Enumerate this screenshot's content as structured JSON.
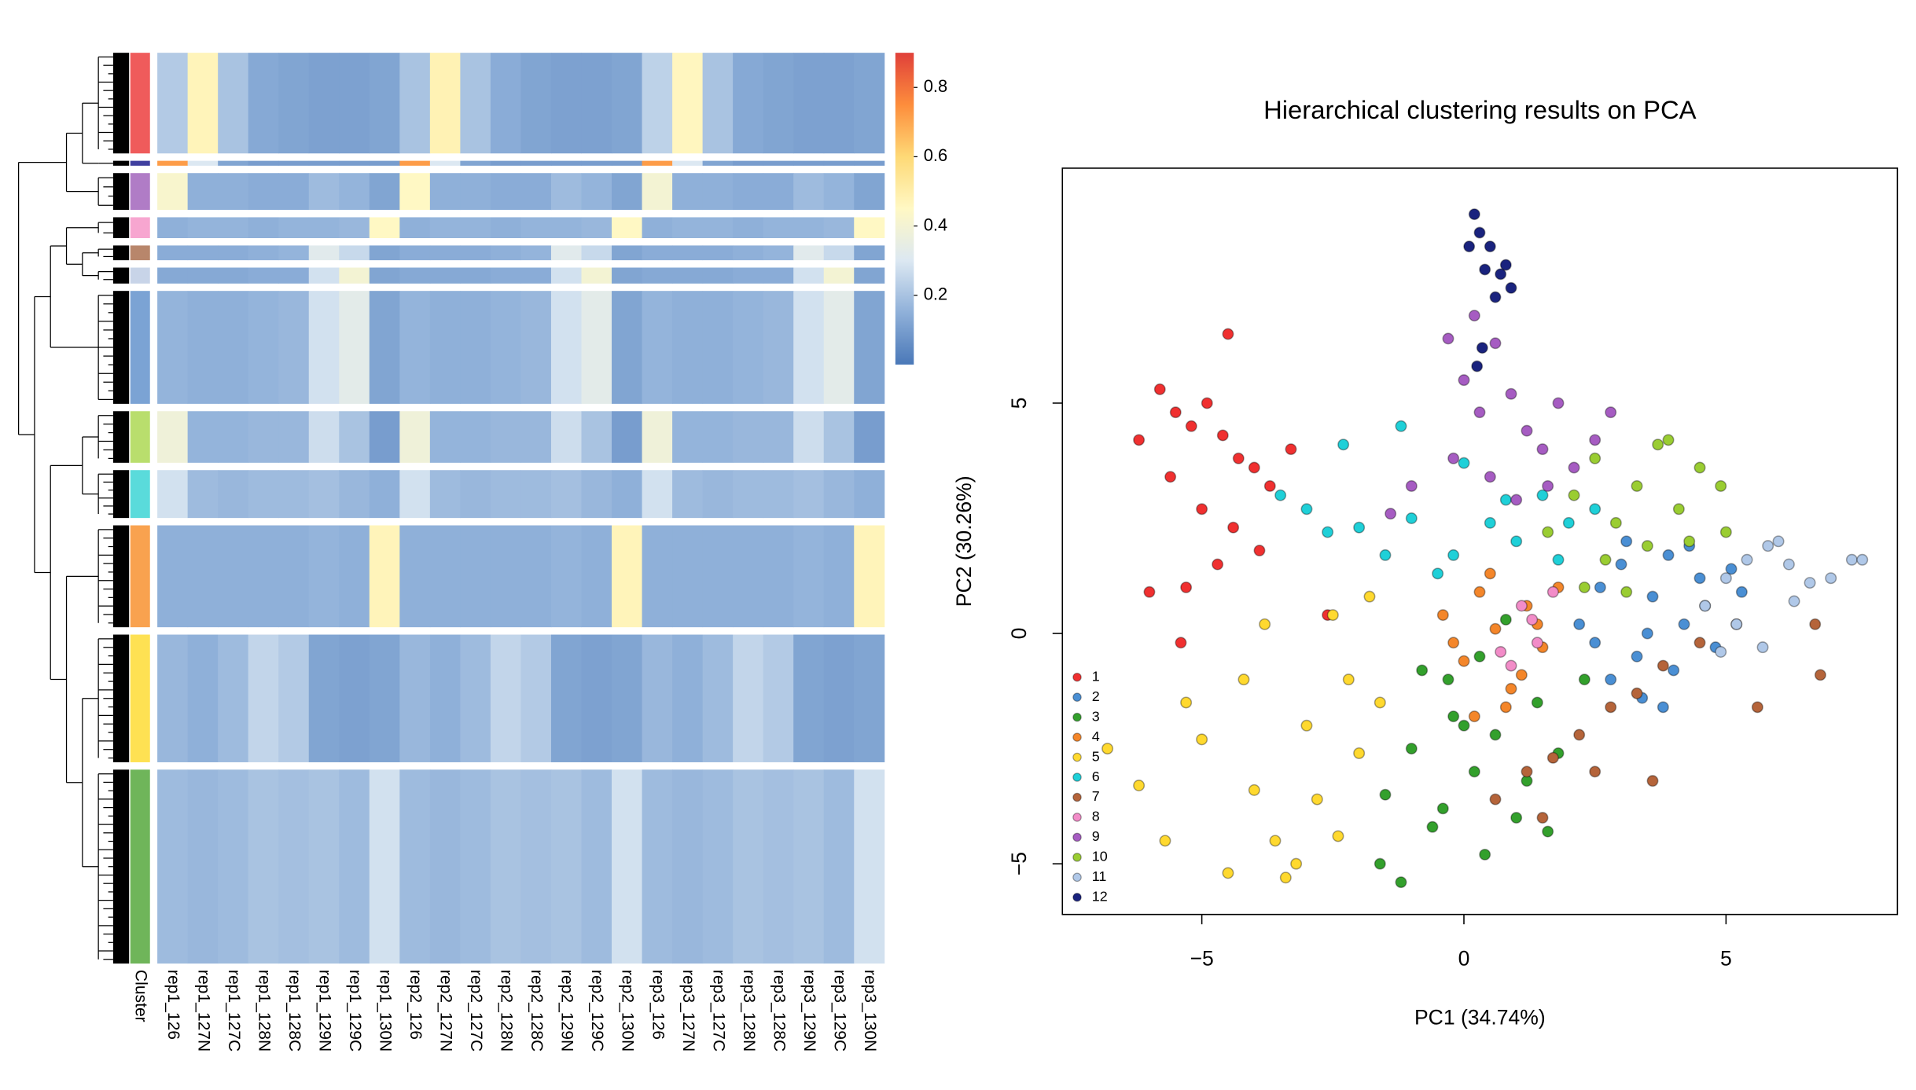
{
  "chart_data": [
    {
      "type": "heatmap",
      "columns": [
        "rep1_126",
        "rep1_127N",
        "rep1_127C",
        "rep1_128N",
        "rep1_128C",
        "rep1_129N",
        "rep1_129C",
        "rep1_130N",
        "rep2_126",
        "rep2_127N",
        "rep2_127C",
        "rep2_128N",
        "rep2_128C",
        "rep2_129N",
        "rep2_129C",
        "rep2_130N",
        "rep3_126",
        "rep3_127N",
        "rep3_127C",
        "rep3_128N",
        "rep3_128C",
        "rep3_129N",
        "rep3_129C",
        "rep3_130N"
      ],
      "cluster_label": "Cluster",
      "clusters": [
        {
          "color": "#ef5b5b",
          "size": 82,
          "values": [
            0.22,
            0.47,
            0.2,
            0.13,
            0.12,
            0.11,
            0.11,
            0.12,
            0.2,
            0.48,
            0.2,
            0.14,
            0.12,
            0.11,
            0.11,
            0.12,
            0.24,
            0.46,
            0.2,
            0.13,
            0.12,
            0.11,
            0.11,
            0.12
          ]
        },
        {
          "color": "#3f3f9f",
          "size": 4,
          "values": [
            0.72,
            0.3,
            0.12,
            0.1,
            0.1,
            0.1,
            0.1,
            0.1,
            0.72,
            0.3,
            0.12,
            0.1,
            0.1,
            0.1,
            0.1,
            0.1,
            0.72,
            0.3,
            0.12,
            0.1,
            0.1,
            0.1,
            0.1,
            0.1
          ]
        },
        {
          "color": "#b07cc6",
          "size": 30,
          "values": [
            0.42,
            0.15,
            0.15,
            0.14,
            0.14,
            0.18,
            0.16,
            0.12,
            0.45,
            0.15,
            0.15,
            0.14,
            0.14,
            0.18,
            0.16,
            0.12,
            0.4,
            0.15,
            0.15,
            0.14,
            0.14,
            0.18,
            0.16,
            0.12
          ]
        },
        {
          "color": "#f7a6d0",
          "size": 17,
          "values": [
            0.15,
            0.16,
            0.16,
            0.15,
            0.16,
            0.16,
            0.17,
            0.45,
            0.15,
            0.16,
            0.16,
            0.15,
            0.16,
            0.16,
            0.17,
            0.45,
            0.15,
            0.16,
            0.16,
            0.15,
            0.16,
            0.16,
            0.17,
            0.45
          ]
        },
        {
          "color": "#b8866b",
          "size": 12,
          "values": [
            0.14,
            0.14,
            0.14,
            0.15,
            0.16,
            0.32,
            0.26,
            0.12,
            0.14,
            0.14,
            0.14,
            0.15,
            0.16,
            0.32,
            0.26,
            0.12,
            0.14,
            0.14,
            0.14,
            0.15,
            0.16,
            0.32,
            0.26,
            0.12
          ]
        },
        {
          "color": "#c8d4e8",
          "size": 13,
          "values": [
            0.13,
            0.13,
            0.13,
            0.14,
            0.14,
            0.28,
            0.4,
            0.12,
            0.13,
            0.13,
            0.13,
            0.14,
            0.14,
            0.28,
            0.4,
            0.12,
            0.13,
            0.13,
            0.13,
            0.14,
            0.14,
            0.28,
            0.4,
            0.12
          ]
        },
        {
          "color": "#7ba3d4",
          "size": 92,
          "values": [
            0.16,
            0.15,
            0.15,
            0.16,
            0.17,
            0.28,
            0.33,
            0.12,
            0.16,
            0.15,
            0.15,
            0.16,
            0.17,
            0.28,
            0.33,
            0.12,
            0.16,
            0.15,
            0.15,
            0.16,
            0.17,
            0.28,
            0.33,
            0.12
          ]
        },
        {
          "color": "#b9de6d",
          "size": 42,
          "values": [
            0.38,
            0.16,
            0.16,
            0.17,
            0.17,
            0.27,
            0.2,
            0.1,
            0.38,
            0.16,
            0.16,
            0.17,
            0.17,
            0.27,
            0.2,
            0.1,
            0.38,
            0.16,
            0.16,
            0.17,
            0.17,
            0.27,
            0.2,
            0.1
          ]
        },
        {
          "color": "#5adbdb",
          "size": 39,
          "values": [
            0.28,
            0.18,
            0.17,
            0.18,
            0.18,
            0.19,
            0.17,
            0.15,
            0.28,
            0.18,
            0.17,
            0.18,
            0.18,
            0.19,
            0.17,
            0.15,
            0.28,
            0.18,
            0.17,
            0.18,
            0.18,
            0.19,
            0.17,
            0.15
          ]
        },
        {
          "color": "#f9a24f",
          "size": 83,
          "values": [
            0.15,
            0.15,
            0.15,
            0.15,
            0.15,
            0.16,
            0.15,
            0.47,
            0.15,
            0.15,
            0.15,
            0.15,
            0.15,
            0.16,
            0.15,
            0.47,
            0.15,
            0.15,
            0.15,
            0.15,
            0.15,
            0.16,
            0.15,
            0.47
          ]
        },
        {
          "color": "#fee153",
          "size": 104,
          "values": [
            0.17,
            0.15,
            0.18,
            0.25,
            0.22,
            0.12,
            0.11,
            0.12,
            0.17,
            0.15,
            0.18,
            0.25,
            0.22,
            0.12,
            0.11,
            0.12,
            0.17,
            0.15,
            0.18,
            0.25,
            0.22,
            0.12,
            0.11,
            0.12
          ]
        },
        {
          "color": "#6fb55a",
          "size": 158,
          "values": [
            0.18,
            0.17,
            0.18,
            0.2,
            0.19,
            0.2,
            0.18,
            0.28,
            0.18,
            0.17,
            0.18,
            0.2,
            0.19,
            0.2,
            0.18,
            0.28,
            0.18,
            0.17,
            0.18,
            0.2,
            0.19,
            0.2,
            0.18,
            0.28
          ]
        }
      ],
      "zlim": [
        0,
        0.9
      ],
      "zticks": [
        0.2,
        0.4,
        0.6,
        0.8
      ],
      "colorscale": [
        "#4a78b8",
        "#8fb0d9",
        "#dce8f2",
        "#fff8c4",
        "#fed976",
        "#fd8d3c",
        "#e0403a"
      ]
    },
    {
      "type": "scatter",
      "title": "Hierarchical clustering results on PCA",
      "x_label": "PC1 (34.74%)",
      "y_label": "PC2 (30.26%)",
      "xlim": [
        -7.66,
        8.27
      ],
      "ylim": [
        -6.1,
        10.1
      ],
      "xticks": [
        {
          "value": -5,
          "label": "−5"
        },
        0,
        5
      ],
      "yticks": [
        {
          "value": -5,
          "label": "−5"
        },
        0,
        5
      ],
      "legend": "bottom-left",
      "series": [
        {
          "name": "1",
          "color": "#f03030",
          "x": [
            -6.2,
            -5.8,
            -5.5,
            -5.2,
            -4.9,
            -4.6,
            -4.3,
            -4.0,
            -3.7,
            -5.6,
            -5.0,
            -4.4,
            -3.9,
            -5.3,
            -4.7,
            -4.5,
            -6.0,
            -5.4,
            -3.3,
            -2.6
          ],
          "values": [
            4.2,
            5.3,
            4.8,
            4.5,
            5.0,
            4.3,
            3.8,
            3.6,
            3.2,
            3.4,
            2.7,
            2.3,
            1.8,
            1.0,
            1.5,
            6.5,
            0.9,
            -0.2,
            4.0,
            0.4
          ]
        },
        {
          "name": "2",
          "color": "#4a8fd4",
          "x": [
            2.2,
            2.6,
            3.0,
            3.3,
            3.6,
            3.9,
            4.2,
            4.5,
            4.8,
            5.1,
            2.8,
            3.4,
            4.0,
            4.6,
            3.1,
            3.8,
            2.5,
            4.3,
            5.3,
            3.5
          ],
          "values": [
            0.2,
            1.0,
            1.5,
            -0.5,
            0.8,
            1.7,
            0.2,
            1.2,
            -0.3,
            1.4,
            -1.0,
            -1.4,
            -0.8,
            0.6,
            2.0,
            -1.6,
            -0.2,
            1.9,
            0.9,
            0.0
          ]
        },
        {
          "name": "3",
          "color": "#33a02c",
          "x": [
            -1.5,
            -1.0,
            -0.6,
            -0.2,
            0.2,
            0.6,
            1.0,
            1.4,
            1.8,
            -1.2,
            -0.4,
            0.4,
            1.2,
            -0.8,
            0.0,
            0.8,
            -1.6,
            1.6,
            0.3,
            -0.3,
            2.3
          ],
          "values": [
            -3.5,
            -2.5,
            -4.2,
            -1.8,
            -3.0,
            -2.2,
            -4.0,
            -1.5,
            -2.6,
            -5.4,
            -3.8,
            -4.8,
            -3.2,
            -0.8,
            -2.0,
            0.3,
            -5.0,
            -4.3,
            -0.5,
            -1.0,
            -1.0
          ]
        },
        {
          "name": "4",
          "color": "#f4862a",
          "x": [
            -0.4,
            0.0,
            0.3,
            0.6,
            0.9,
            1.2,
            1.5,
            1.8,
            0.2,
            0.8,
            1.4,
            -0.2,
            0.5,
            1.1
          ],
          "values": [
            0.4,
            -0.6,
            0.9,
            0.1,
            -1.2,
            0.6,
            -0.3,
            1.0,
            -1.8,
            -1.6,
            0.2,
            -0.2,
            1.3,
            -0.9
          ]
        },
        {
          "name": "5",
          "color": "#ffd92f",
          "x": [
            -6.8,
            -6.2,
            -5.7,
            -5.0,
            -4.5,
            -4.0,
            -3.6,
            -3.2,
            -2.8,
            -2.4,
            -2.0,
            -1.6,
            -3.0,
            -2.5,
            -4.2,
            -3.8,
            -5.3,
            -2.2,
            -1.8,
            -3.4
          ],
          "values": [
            -2.5,
            -3.3,
            -4.5,
            -2.3,
            -5.2,
            -3.4,
            -4.5,
            -5.0,
            -3.6,
            -4.4,
            -2.6,
            -1.5,
            -2.0,
            0.4,
            -1.0,
            0.2,
            -1.5,
            -1.0,
            0.8,
            -5.3
          ]
        },
        {
          "name": "6",
          "color": "#1fd0d8",
          "x": [
            -3.5,
            -3.0,
            -2.6,
            -2.0,
            -1.5,
            -1.0,
            -0.5,
            0.0,
            0.5,
            1.0,
            1.5,
            2.0,
            2.5,
            -2.3,
            -0.2,
            0.8,
            1.8,
            -1.2
          ],
          "values": [
            3.0,
            2.7,
            2.2,
            2.3,
            1.7,
            2.5,
            1.3,
            3.7,
            2.4,
            2.0,
            3.0,
            2.4,
            2.7,
            4.1,
            1.7,
            2.9,
            1.6,
            4.5
          ]
        },
        {
          "name": "7",
          "color": "#b5643a",
          "x": [
            0.6,
            1.2,
            1.7,
            2.2,
            2.8,
            3.3,
            3.8,
            4.5,
            5.2,
            6.7,
            5.6,
            3.6,
            1.5,
            2.5,
            6.8
          ],
          "values": [
            -3.6,
            -3.0,
            -2.7,
            -2.2,
            -1.6,
            -1.3,
            -0.7,
            -0.2,
            0.2,
            0.2,
            -1.6,
            -3.2,
            -4.0,
            -3.0,
            -0.9
          ]
        },
        {
          "name": "8",
          "color": "#f28cc8",
          "x": [
            0.7,
            1.1,
            1.4,
            1.7,
            1.3,
            0.9
          ],
          "values": [
            -0.4,
            0.6,
            -0.2,
            0.9,
            0.3,
            -0.7
          ]
        },
        {
          "name": "9",
          "color": "#a65cc2",
          "x": [
            -0.3,
            0.0,
            0.3,
            0.6,
            0.9,
            1.2,
            1.5,
            1.8,
            2.1,
            2.5,
            0.5,
            1.0,
            -1.0,
            -1.4,
            2.8,
            0.2,
            1.6,
            -0.2
          ],
          "values": [
            6.4,
            5.5,
            4.8,
            6.3,
            5.2,
            4.4,
            4.0,
            5.0,
            3.6,
            4.2,
            3.4,
            2.9,
            3.2,
            2.6,
            4.8,
            6.9,
            3.2,
            3.8
          ]
        },
        {
          "name": "10",
          "color": "#9acd32",
          "x": [
            1.6,
            2.1,
            2.5,
            2.9,
            3.3,
            3.7,
            4.1,
            4.5,
            4.9,
            5.0,
            2.7,
            3.5,
            4.3,
            2.3,
            3.1,
            3.9
          ],
          "values": [
            2.2,
            3.0,
            3.8,
            2.4,
            3.2,
            4.1,
            2.7,
            3.6,
            3.2,
            2.2,
            1.6,
            1.9,
            2.0,
            1.0,
            0.9,
            4.2
          ]
        },
        {
          "name": "11",
          "color": "#b0c8e8",
          "x": [
            4.6,
            5.0,
            5.4,
            5.8,
            6.2,
            6.6,
            7.0,
            7.4,
            7.6,
            5.2,
            5.7,
            6.3,
            4.9,
            6.0
          ],
          "values": [
            0.6,
            1.2,
            1.6,
            1.9,
            1.5,
            1.1,
            1.2,
            1.6,
            1.6,
            0.2,
            -0.3,
            0.7,
            -0.4,
            2.0
          ]
        },
        {
          "name": "12",
          "color": "#1a237e",
          "x": [
            0.2,
            0.3,
            0.1,
            0.5,
            0.4,
            0.7,
            0.9,
            0.6,
            0.25,
            0.35,
            0.8
          ],
          "values": [
            9.1,
            8.7,
            8.4,
            8.4,
            7.9,
            7.8,
            7.5,
            7.3,
            5.8,
            6.2,
            8.0
          ]
        }
      ]
    }
  ]
}
